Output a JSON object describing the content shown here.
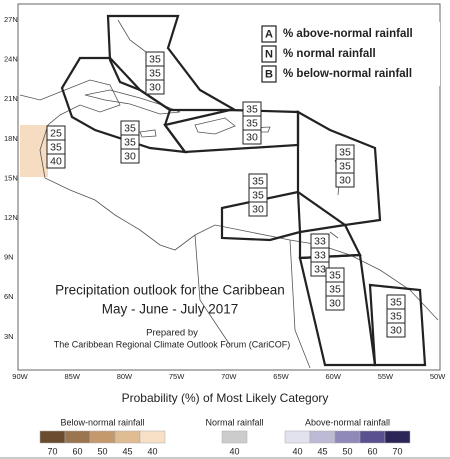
{
  "map": {
    "lat_labels": [
      "27N",
      "24N",
      "21N",
      "18N",
      "15N",
      "12N",
      "9N",
      "6N",
      "3N"
    ],
    "lon_labels": [
      "90W",
      "85W",
      "80W",
      "75W",
      "70W",
      "65W",
      "60W",
      "55W",
      "50W"
    ],
    "title": "Precipitation outlook for the Caribbean",
    "period": "May - June - July 2017",
    "prepared_by": "Prepared by",
    "organization": "The Caribbean Regional Climate Outlook Forum (CariCOF)",
    "regions": [
      {
        "above": 35,
        "normal": 35,
        "below": 30
      },
      {
        "above": 35,
        "normal": 35,
        "below": 30
      },
      {
        "above": 35,
        "normal": 35,
        "below": 30
      },
      {
        "above": 25,
        "normal": 35,
        "below": 40
      },
      {
        "above": 35,
        "normal": 35,
        "below": 30
      },
      {
        "above": 35,
        "normal": 35,
        "below": 30
      },
      {
        "above": 33,
        "normal": 33,
        "below": 33
      },
      {
        "above": 35,
        "normal": 35,
        "below": 30
      },
      {
        "above": 35,
        "normal": 35,
        "below": 30
      }
    ]
  },
  "key": {
    "items": [
      {
        "letter": "A",
        "text": "% above-normal rainfall"
      },
      {
        "letter": "N",
        "text": "% normal rainfall"
      },
      {
        "letter": "B",
        "text": "% below-normal rainfall"
      }
    ]
  },
  "colorbar": {
    "title": "Probability (%) of Most Likely Category",
    "groups": [
      {
        "name": "Below-normal rainfall",
        "steps": [
          {
            "value": 70,
            "color": "#6b4c2e"
          },
          {
            "value": 60,
            "color": "#9b7550"
          },
          {
            "value": 50,
            "color": "#c49a6c"
          },
          {
            "value": 45,
            "color": "#e0bc92"
          },
          {
            "value": 40,
            "color": "#f6e0c6"
          }
        ]
      },
      {
        "name": "Normal rainfall",
        "steps": [
          {
            "value": 40,
            "color": "#cccccc"
          }
        ]
      },
      {
        "name": "Above-normal rainfall",
        "steps": [
          {
            "value": 40,
            "color": "#e2e1ee"
          },
          {
            "value": 45,
            "color": "#bdbad6"
          },
          {
            "value": 50,
            "color": "#8f89b8"
          },
          {
            "value": 60,
            "color": "#5a5290"
          },
          {
            "value": 70,
            "color": "#2c2658"
          }
        ]
      }
    ]
  }
}
